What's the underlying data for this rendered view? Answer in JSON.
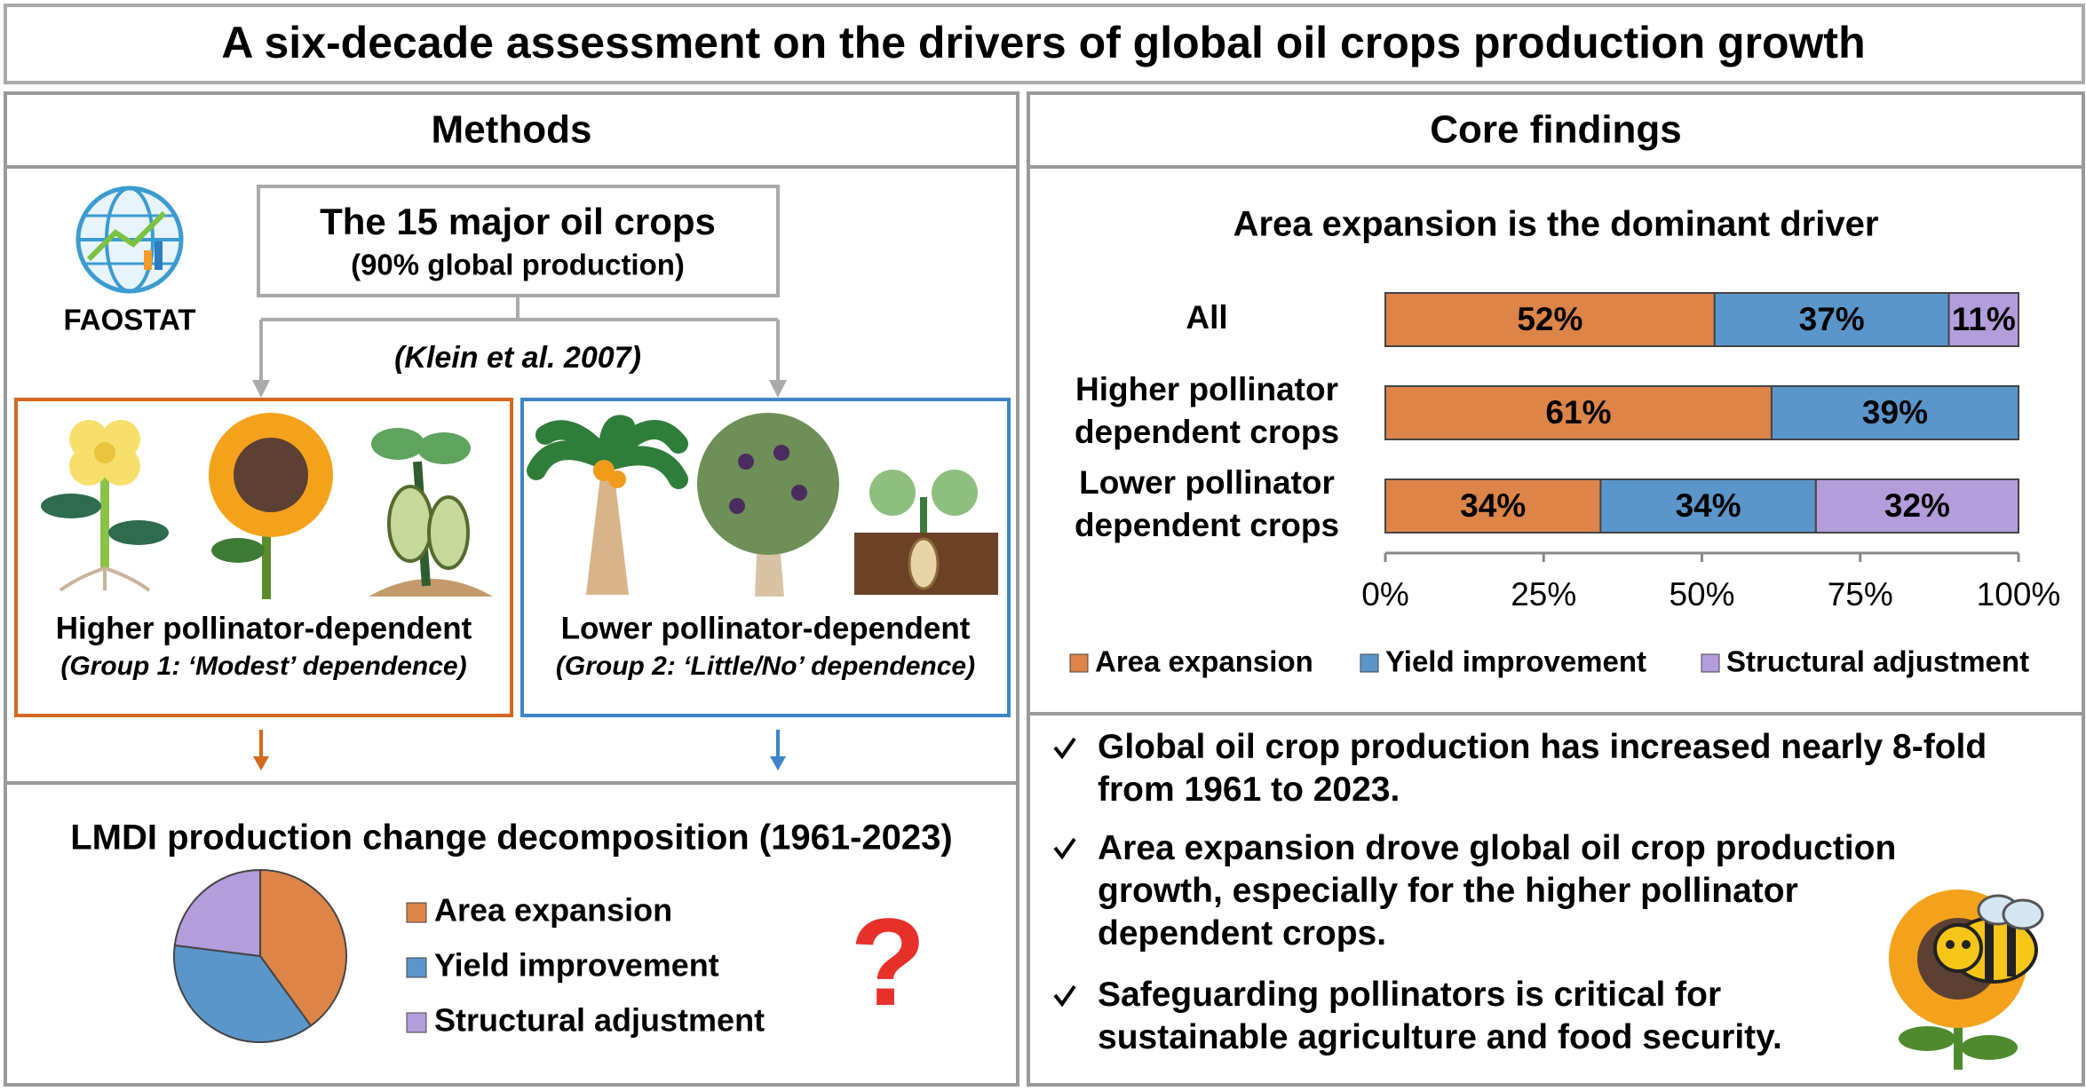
{
  "title": "A six-decade assessment on the drivers of global oil crops production growth",
  "methods": {
    "heading": "Methods",
    "source": "FAOSTAT",
    "crops_box": {
      "title": "The 15 major oil crops",
      "subtitle": "(90% global production)"
    },
    "citation": "(Klein et al. 2007)",
    "groups": [
      {
        "label": "Higher pollinator-dependent",
        "note": "(Group 1: ‘Modest’ dependence)"
      },
      {
        "label": "Lower pollinator-dependent",
        "note": "(Group 2: ‘Little/No’ dependence)"
      }
    ],
    "question_mark": "?"
  },
  "core_findings": {
    "heading": "Core findings",
    "bullets": [
      "Global oil crop production has increased nearly 8-fold from 1961 to 2023.",
      "Area expansion drove global oil crop production growth, especially for the higher pollinator dependent crops.",
      "Safeguarding pollinators is critical for sustainable agriculture and food security."
    ]
  },
  "chart_data": [
    {
      "type": "stacked_bar_horizontal",
      "title": "Area expansion is the dominant driver",
      "categories": [
        "All",
        "Higher pollinator dependent crops",
        "Lower pollinator dependent crops"
      ],
      "series": [
        {
          "name": "Area expansion",
          "color": "#dd8449",
          "values": [
            52,
            61,
            34
          ],
          "value_labels": [
            "52%",
            "61%",
            "34%"
          ]
        },
        {
          "name": "Yield improvement",
          "color": "#5b96cb",
          "values": [
            37,
            39,
            34
          ],
          "value_labels": [
            "37%",
            "39%",
            "34%"
          ]
        },
        {
          "name": "Structural adjustment",
          "color": "#b39ddb",
          "values": [
            11,
            null,
            32
          ],
          "value_labels": [
            "11%",
            null,
            "32%"
          ]
        }
      ],
      "xlim": [
        0,
        100
      ],
      "xticks": [
        {
          "value": 0,
          "label": "0%"
        },
        {
          "value": 25,
          "label": "25%"
        },
        {
          "value": 50,
          "label": "50%"
        },
        {
          "value": 75,
          "label": "75%"
        },
        {
          "value": 100,
          "label": "100%"
        }
      ]
    },
    {
      "type": "pie",
      "title": "LMDI production change decomposition (1961-2023)",
      "categories": [
        "Area expansion",
        "Yield improvement",
        "Structural adjustment"
      ],
      "values": [
        40,
        37,
        23
      ],
      "colors": [
        "#dd8449",
        "#5b96cb",
        "#b39ddb"
      ]
    }
  ]
}
